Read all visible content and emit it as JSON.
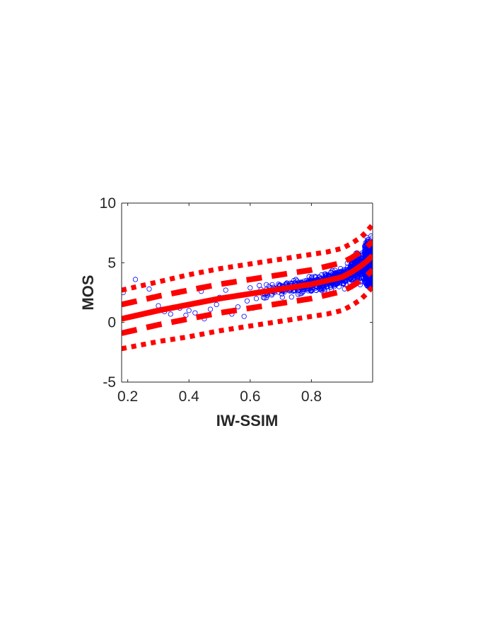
{
  "chart_data": {
    "type": "scatter",
    "title": "",
    "xlabel": "IW-SSIM",
    "ylabel": "MOS",
    "xlim": [
      0.18,
      1.0
    ],
    "ylim": [
      -5,
      10
    ],
    "x_ticks": [
      0.2,
      0.4,
      0.6,
      0.8
    ],
    "y_ticks": [
      -5,
      0,
      5,
      10
    ],
    "grid": false,
    "legend": "none",
    "colors": {
      "points": "#0000ff",
      "fit": "#ff0000",
      "axes": "#262626"
    },
    "scatter": {
      "cluster_points": [
        {
          "x": 0.185,
          "y": 2.5
        },
        {
          "x": 0.225,
          "y": 3.6
        },
        {
          "x": 0.27,
          "y": 2.8
        },
        {
          "x": 0.3,
          "y": 1.4
        },
        {
          "x": 0.32,
          "y": 0.9
        },
        {
          "x": 0.34,
          "y": 0.7
        },
        {
          "x": 0.37,
          "y": 1.2
        },
        {
          "x": 0.39,
          "y": 0.6
        },
        {
          "x": 0.4,
          "y": 1.0
        },
        {
          "x": 0.42,
          "y": 0.8
        },
        {
          "x": 0.44,
          "y": 2.6
        },
        {
          "x": 0.45,
          "y": 0.3
        },
        {
          "x": 0.47,
          "y": 1.1
        },
        {
          "x": 0.49,
          "y": 1.5
        },
        {
          "x": 0.5,
          "y": 2.1
        },
        {
          "x": 0.52,
          "y": 2.7
        },
        {
          "x": 0.54,
          "y": 0.7
        },
        {
          "x": 0.56,
          "y": 1.3
        },
        {
          "x": 0.57,
          "y": 2.3
        },
        {
          "x": 0.58,
          "y": 0.5
        },
        {
          "x": 0.59,
          "y": 1.8
        },
        {
          "x": 0.6,
          "y": 2.9
        },
        {
          "x": 0.61,
          "y": 1.2
        },
        {
          "x": 0.62,
          "y": 2.0
        },
        {
          "x": 0.63,
          "y": 3.1
        },
        {
          "x": 0.64,
          "y": 2.4
        }
      ],
      "trend": {
        "description": "dense cloud following the fitted curve",
        "x_range": [
          0.62,
          1.0
        ],
        "spread": 1.3
      }
    },
    "series": [
      {
        "name": "",
        "style": "solid",
        "x": [
          0.18,
          0.3,
          0.4,
          0.5,
          0.6,
          0.7,
          0.8,
          0.85,
          0.9,
          0.93,
          0.96,
          0.98,
          1.0
        ],
        "y": [
          0.3,
          1.0,
          1.5,
          2.0,
          2.4,
          2.8,
          3.2,
          3.5,
          3.8,
          4.2,
          4.7,
          5.1,
          5.6
        ]
      },
      {
        "name": "",
        "style": "dashed",
        "x": [
          0.18,
          0.3,
          0.4,
          0.5,
          0.6,
          0.7,
          0.8,
          0.85,
          0.9,
          0.93,
          0.96,
          0.98,
          1.0
        ],
        "y": [
          1.5,
          2.2,
          2.7,
          3.2,
          3.6,
          4.0,
          4.4,
          4.7,
          5.0,
          5.4,
          5.9,
          6.3,
          6.8
        ]
      },
      {
        "name": "",
        "style": "dashed",
        "x": [
          0.18,
          0.3,
          0.4,
          0.5,
          0.6,
          0.7,
          0.8,
          0.85,
          0.9,
          0.93,
          0.96,
          0.98,
          1.0
        ],
        "y": [
          -0.9,
          -0.2,
          0.3,
          0.8,
          1.2,
          1.6,
          2.0,
          2.3,
          2.6,
          3.0,
          3.5,
          3.9,
          4.4
        ]
      },
      {
        "name": "",
        "style": "dotted",
        "x": [
          0.18,
          0.3,
          0.4,
          0.5,
          0.6,
          0.7,
          0.8,
          0.85,
          0.9,
          0.93,
          0.96,
          0.98,
          1.0
        ],
        "y": [
          2.7,
          3.4,
          4.0,
          4.5,
          4.9,
          5.3,
          5.7,
          5.9,
          6.2,
          6.6,
          7.1,
          7.6,
          8.2
        ]
      },
      {
        "name": "",
        "style": "dotted",
        "x": [
          0.18,
          0.3,
          0.4,
          0.5,
          0.6,
          0.7,
          0.8,
          0.85,
          0.9,
          0.93,
          0.96,
          0.98,
          1.0
        ],
        "y": [
          -2.2,
          -1.6,
          -1.2,
          -0.7,
          -0.3,
          0.1,
          0.5,
          0.7,
          1.0,
          1.4,
          1.9,
          2.4,
          3.0
        ]
      }
    ]
  }
}
